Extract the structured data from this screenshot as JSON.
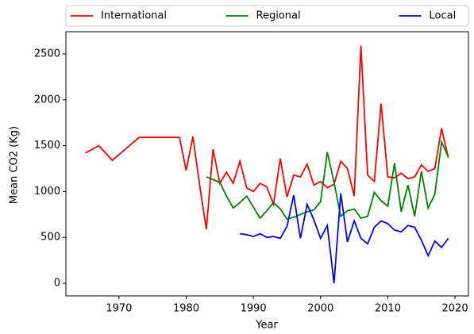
{
  "chart_data": {
    "type": "line",
    "x_label": "Year",
    "y_label": "Mean CO2 (Kg)",
    "xlim": [
      1962.1,
      2022
    ],
    "xticks": [
      1970,
      1980,
      1990,
      2000,
      2010,
      2020
    ],
    "ylim": [
      -138,
      2742
    ],
    "yticks": [
      0,
      500,
      1000,
      1500,
      2000,
      2500
    ],
    "legend": "top-expand",
    "series": [
      {
        "name": "International",
        "color": "#ff0000",
        "x": [
          1965,
          1967,
          1969,
          1973,
          1975,
          1977,
          1979,
          1980,
          1981,
          1982,
          1983,
          1984,
          1985,
          1986,
          1987,
          1988,
          1989,
          1990,
          1991,
          1992,
          1993,
          1994,
          1995,
          1996,
          1997,
          1998,
          1999,
          2000,
          2001,
          2002,
          2003,
          2004,
          2005,
          2006,
          2007,
          2008,
          2009,
          2010,
          2011,
          2012,
          2013,
          2014,
          2015,
          2016,
          2017,
          2018,
          2019
        ],
        "values": [
          1420,
          1500,
          1340,
          1590,
          1590,
          1590,
          1590,
          1230,
          1600,
          1070,
          590,
          1460,
          1090,
          1210,
          1090,
          1330,
          1040,
          1000,
          1090,
          1050,
          860,
          1360,
          940,
          1180,
          1160,
          1300,
          1070,
          1110,
          1040,
          1080,
          1330,
          1250,
          950,
          2590,
          1180,
          1110,
          1960,
          1160,
          1150,
          1200,
          1140,
          1160,
          1290,
          1220,
          1250,
          1690,
          1370
        ]
      },
      {
        "name": "Regional",
        "color": "#008000",
        "x": [
          1983,
          1984,
          1985,
          1986,
          1987,
          1988,
          1989,
          1990,
          1991,
          1992,
          1993,
          1994,
          1995,
          1996,
          1997,
          1998,
          1999,
          2000,
          2001,
          2002,
          2003,
          2004,
          2005,
          2006,
          2007,
          2008,
          2009,
          2010,
          2011,
          2012,
          2013,
          2014,
          2015,
          2016,
          2017,
          2018,
          2019
        ],
        "values": [
          1160,
          1130,
          1100,
          950,
          820,
          880,
          950,
          830,
          710,
          790,
          880,
          810,
          700,
          720,
          750,
          780,
          800,
          890,
          1430,
          1100,
          730,
          790,
          810,
          710,
          730,
          990,
          900,
          840,
          1310,
          780,
          1070,
          730,
          1220,
          820,
          970,
          1540,
          1380
        ]
      },
      {
        "name": "Local",
        "color": "#0000ff",
        "x": [
          1988,
          1989,
          1990,
          1991,
          1992,
          1993,
          1994,
          1995,
          1996,
          1997,
          1998,
          1999,
          2000,
          2001,
          2002,
          2003,
          2004,
          2005,
          2006,
          2007,
          2008,
          2009,
          2010,
          2011,
          2012,
          2013,
          2014,
          2015,
          2016,
          2017,
          2018,
          2019
        ],
        "values": [
          540,
          530,
          510,
          540,
          500,
          510,
          490,
          620,
          960,
          490,
          860,
          690,
          490,
          630,
          0,
          980,
          450,
          680,
          490,
          430,
          610,
          680,
          650,
          580,
          560,
          630,
          610,
          470,
          300,
          460,
          390,
          490
        ]
      }
    ]
  }
}
